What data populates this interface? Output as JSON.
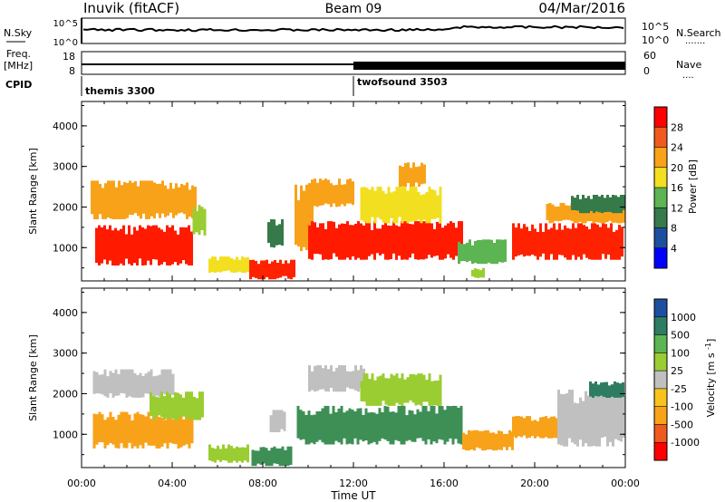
{
  "header": {
    "title": "Inuvik (fitACF)",
    "beam": "Beam 09",
    "date": "04/Mar/2016"
  },
  "nsky_panel": {
    "label": "N.Sky",
    "ticks_left": [
      "10^5",
      "10^0"
    ],
    "right_label": "N.Search",
    "ticks_right": [
      "10^5",
      "10^0"
    ],
    "right_dots": "......."
  },
  "freq_panel": {
    "label_line1": "Freq.",
    "label_line2": "[MHz]",
    "ticks_left": [
      "18",
      "8"
    ],
    "right_label": "Nave",
    "ticks_right": [
      "60",
      "0"
    ],
    "right_dots": "...."
  },
  "cpid_panel": {
    "label": "CPID",
    "modes": [
      {
        "name": "themis 3300",
        "start_hour": 0
      },
      {
        "name": "twofsound 3503",
        "start_hour": 12
      }
    ]
  },
  "x_axis": {
    "label": "Time UT",
    "ticks": [
      "00:00",
      "04:00",
      "08:00",
      "12:00",
      "16:00",
      "20:00",
      "00:00"
    ],
    "range_hours": [
      0,
      24
    ]
  },
  "chart_data": [
    {
      "type": "heatmap",
      "name": "power",
      "ylabel": "Slant Range [km]",
      "yticks": [
        1000,
        2000,
        3000,
        4000
      ],
      "ylim": [
        180,
        4600
      ],
      "xlim": [
        0,
        24
      ],
      "colorbar": {
        "label": "Power [dB]",
        "ticks": [
          "28",
          "24",
          "20",
          "16",
          "12",
          "8",
          "4"
        ],
        "colors": [
          "#ff0000",
          "#f15a1e",
          "#f8a21a",
          "#f2df1f",
          "#5cb452",
          "#367a4a",
          "#1d4fa0",
          "#0000ff"
        ]
      },
      "regions": [
        {
          "t0": 0.6,
          "t1": 4.9,
          "r0": 560,
          "r1": 1550,
          "color": "#ff1a00"
        },
        {
          "t0": 0.6,
          "t1": 2.8,
          "r0": 1950,
          "r1": 2350,
          "color": "#ff2200"
        },
        {
          "t0": 0.4,
          "t1": 5.0,
          "r0": 1700,
          "r1": 2650,
          "color": "#f8a21a"
        },
        {
          "t0": 4.9,
          "t1": 5.4,
          "r0": 1300,
          "r1": 2050,
          "color": "#9acd32"
        },
        {
          "t0": 5.6,
          "t1": 7.3,
          "r0": 380,
          "r1": 780,
          "color": "#f2df1f"
        },
        {
          "t0": 7.4,
          "t1": 9.4,
          "r0": 220,
          "r1": 700,
          "color": "#ff2200"
        },
        {
          "t0": 8.2,
          "t1": 8.9,
          "r0": 1000,
          "r1": 1700,
          "color": "#367a4a"
        },
        {
          "t0": 9.4,
          "t1": 10.2,
          "r0": 900,
          "r1": 2550,
          "color": "#f8a21a"
        },
        {
          "t0": 10.0,
          "t1": 16.8,
          "r0": 700,
          "r1": 1650,
          "color": "#ff1a00"
        },
        {
          "t0": 10.0,
          "t1": 12.0,
          "r0": 2000,
          "r1": 2700,
          "color": "#f8a21a"
        },
        {
          "t0": 12.3,
          "t1": 15.8,
          "r0": 1600,
          "r1": 2500,
          "color": "#f2df1f"
        },
        {
          "t0": 14.0,
          "t1": 15.2,
          "r0": 2500,
          "r1": 3100,
          "color": "#f8a21a"
        },
        {
          "t0": 16.6,
          "t1": 18.7,
          "r0": 600,
          "r1": 1200,
          "color": "#5cb452"
        },
        {
          "t0": 17.2,
          "t1": 17.7,
          "r0": 250,
          "r1": 500,
          "color": "#9acd32"
        },
        {
          "t0": 19.0,
          "t1": 23.9,
          "r0": 700,
          "r1": 1600,
          "color": "#ff2200"
        },
        {
          "t0": 20.5,
          "t1": 23.9,
          "r0": 1600,
          "r1": 2100,
          "color": "#f8a21a"
        },
        {
          "t0": 21.6,
          "t1": 23.9,
          "r0": 1850,
          "r1": 2300,
          "color": "#367a4a"
        }
      ]
    },
    {
      "type": "heatmap",
      "name": "velocity",
      "ylabel": "Slant Range [km]",
      "yticks": [
        1000,
        2000,
        3000,
        4000
      ],
      "ylim": [
        180,
        4600
      ],
      "xlim": [
        0,
        24
      ],
      "colorbar": {
        "label": "Velocity [m s^-1]",
        "ticks": [
          "1000",
          "500",
          "100",
          "25",
          "-25",
          "-100",
          "-500",
          "-1000"
        ],
        "colors": [
          "#1d4fa0",
          "#2e7d62",
          "#5cb452",
          "#9acd32",
          "#c0c0c0",
          "#f8c31a",
          "#f8a21a",
          "#f15a1e",
          "#ff0000"
        ]
      },
      "regions": [
        {
          "t0": 0.5,
          "t1": 4.9,
          "r0": 650,
          "r1": 1550,
          "color": "#f8a21a"
        },
        {
          "t0": 0.5,
          "t1": 4.0,
          "r0": 1900,
          "r1": 2600,
          "color": "#c0c0c0"
        },
        {
          "t0": 3.0,
          "t1": 5.3,
          "r0": 1350,
          "r1": 2050,
          "color": "#9acd32"
        },
        {
          "t0": 5.6,
          "t1": 7.4,
          "r0": 300,
          "r1": 750,
          "color": "#9acd32"
        },
        {
          "t0": 7.5,
          "t1": 9.2,
          "r0": 220,
          "r1": 700,
          "color": "#3e8f56"
        },
        {
          "t0": 8.3,
          "t1": 9.0,
          "r0": 1050,
          "r1": 1600,
          "color": "#c0c0c0"
        },
        {
          "t0": 9.5,
          "t1": 16.8,
          "r0": 750,
          "r1": 1700,
          "color": "#3e8f56"
        },
        {
          "t0": 10.0,
          "t1": 12.5,
          "r0": 2050,
          "r1": 2700,
          "color": "#c0c0c0"
        },
        {
          "t0": 12.3,
          "t1": 15.8,
          "r0": 1700,
          "r1": 2500,
          "color": "#9acd32"
        },
        {
          "t0": 16.8,
          "t1": 19.0,
          "r0": 600,
          "r1": 1100,
          "color": "#f8a21a"
        },
        {
          "t0": 19.0,
          "t1": 21.5,
          "r0": 900,
          "r1": 1450,
          "color": "#f8a21a"
        },
        {
          "t0": 21.0,
          "t1": 23.9,
          "r0": 700,
          "r1": 2100,
          "color": "#c0c0c0"
        },
        {
          "t0": 22.4,
          "t1": 23.9,
          "r0": 1900,
          "r1": 2300,
          "color": "#2e7d62"
        }
      ]
    }
  ]
}
